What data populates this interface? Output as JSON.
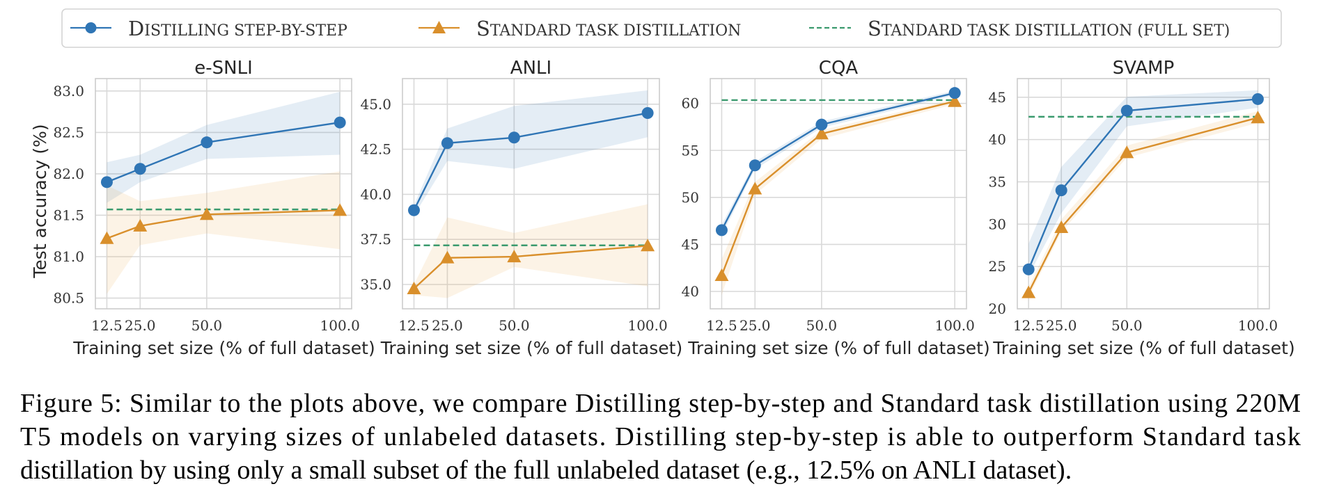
{
  "colors": {
    "distill": "#2f75b5",
    "standard": "#d98f2b",
    "full_set": "#3a9a6e",
    "distill_band": "#2f75b5",
    "standard_band": "#e8a94c"
  },
  "legend": {
    "items": [
      {
        "key": "distill",
        "label_first": "D",
        "label_rest": "ISTILLING STEP-BY-STEP",
        "marker": "circle",
        "style": "solid"
      },
      {
        "key": "standard",
        "label_first": "S",
        "label_rest": "TANDARD TASK DISTILLATION",
        "marker": "triangle",
        "style": "solid"
      },
      {
        "key": "full_set",
        "label_first": "S",
        "label_rest": "TANDARD TASK DISTILLATION (FULL SET)",
        "marker": "none",
        "style": "dashed"
      }
    ]
  },
  "caption": {
    "lines": [
      "Figure 5: Similar to the plots above, we compare Distilling step-by-step and Standard task distillation using 220M",
      "T5 models on varying sizes of unlabeled datasets.  Distilling step-by-step is able to outperform Standard task",
      "distillation by using only a small subset of the full unlabeled dataset (e.g., 12.5% on ANLI dataset)."
    ]
  },
  "chart_data": [
    {
      "type": "line",
      "title": "e-SNLI",
      "xlabel": "Training set size (% of full dataset)",
      "ylabel": "Test accuracy (%)",
      "x": [
        12.5,
        25.0,
        50.0,
        100.0
      ],
      "xticks": [
        "12.5",
        "25.0",
        "50.0",
        "100.0"
      ],
      "xlim": [
        8.2,
        104.4
      ],
      "ylim": [
        80.37,
        83.15
      ],
      "yticks": [
        80.5,
        81.0,
        81.5,
        82.0,
        82.5,
        83.0
      ],
      "ytick_labels": [
        "80.5",
        "81.0",
        "81.5",
        "82.0",
        "82.5",
        "83.0"
      ],
      "grid": true,
      "series": [
        {
          "name": "Distilling step-by-step",
          "key": "distill",
          "values": [
            81.9,
            82.06,
            82.38,
            82.62
          ],
          "band_upper": [
            82.14,
            82.23,
            82.59,
            82.99
          ],
          "band_lower": [
            81.65,
            81.9,
            82.18,
            82.23
          ]
        },
        {
          "name": "Standard task distillation",
          "key": "standard",
          "values": [
            81.22,
            81.37,
            81.51,
            81.56
          ],
          "band_upper": [
            81.86,
            81.67,
            81.77,
            82.03
          ],
          "band_lower": [
            80.55,
            81.14,
            81.28,
            81.09
          ]
        }
      ],
      "hline": {
        "name": "Standard task distillation (full set)",
        "key": "full_set",
        "value": 81.57
      }
    },
    {
      "type": "line",
      "title": "ANLI",
      "xlabel": "Training set size (% of full dataset)",
      "ylabel": "",
      "x": [
        12.5,
        25.0,
        50.0,
        100.0
      ],
      "xticks": [
        "12.5",
        "25.0",
        "50.0",
        "100.0"
      ],
      "xlim": [
        8.2,
        104.4
      ],
      "ylim": [
        33.65,
        46.42
      ],
      "yticks": [
        35.0,
        37.5,
        40.0,
        42.5,
        45.0
      ],
      "ytick_labels": [
        "35.0",
        "37.5",
        "40.0",
        "42.5",
        "45.0"
      ],
      "grid": true,
      "series": [
        {
          "name": "Distilling step-by-step",
          "key": "distill",
          "values": [
            39.12,
            42.84,
            43.15,
            44.51
          ],
          "band_upper": [
            39.4,
            43.65,
            44.9,
            45.77
          ],
          "band_lower": [
            38.82,
            41.85,
            41.42,
            43.17
          ]
        },
        {
          "name": "Standard task distillation",
          "key": "standard",
          "values": [
            34.77,
            36.48,
            36.54,
            37.15
          ],
          "band_upper": [
            35.0,
            38.72,
            37.86,
            39.45
          ],
          "band_lower": [
            34.4,
            34.25,
            35.97,
            34.9
          ]
        }
      ],
      "hline": {
        "name": "Standard task distillation (full set)",
        "key": "full_set",
        "value": 37.17
      }
    },
    {
      "type": "line",
      "title": "CQA",
      "xlabel": "Training set size (% of full dataset)",
      "ylabel": "",
      "x": [
        12.5,
        25.0,
        50.0,
        100.0
      ],
      "xticks": [
        "12.5",
        "25.0",
        "50.0",
        "100.0"
      ],
      "xlim": [
        8.2,
        104.4
      ],
      "ylim": [
        38.15,
        62.64
      ],
      "yticks": [
        40,
        45,
        50,
        55,
        60
      ],
      "ytick_labels": [
        "40",
        "45",
        "50",
        "55",
        "60"
      ],
      "grid": true,
      "series": [
        {
          "name": "Distilling step-by-step",
          "key": "distill",
          "values": [
            46.52,
            53.41,
            57.75,
            61.11
          ],
          "band_upper": [
            47.09,
            53.8,
            58.07,
            61.36
          ],
          "band_lower": [
            45.98,
            53.0,
            57.41,
            60.86
          ]
        },
        {
          "name": "Standard task distillation",
          "key": "standard",
          "values": [
            41.7,
            50.91,
            56.77,
            60.22
          ],
          "band_upper": [
            43.45,
            51.65,
            57.16,
            60.47
          ],
          "band_lower": [
            39.6,
            50.3,
            56.22,
            59.93
          ]
        }
      ],
      "hline": {
        "name": "Standard task distillation (full set)",
        "key": "full_set",
        "value": 60.35
      }
    },
    {
      "type": "line",
      "title": "SVAMP",
      "xlabel": "Training set size (% of full dataset)",
      "ylabel": "",
      "x": [
        12.5,
        25.0,
        50.0,
        100.0
      ],
      "xticks": [
        "12.5",
        "25.0",
        "50.0",
        "100.0"
      ],
      "xlim": [
        8.2,
        104.4
      ],
      "ylim": [
        20.0,
        47.2
      ],
      "yticks": [
        20,
        25,
        30,
        35,
        40,
        45
      ],
      "ytick_labels": [
        "20",
        "25",
        "30",
        "35",
        "40",
        "45"
      ],
      "grid": true,
      "series": [
        {
          "name": "Distilling step-by-step",
          "key": "distill",
          "values": [
            24.66,
            34.0,
            43.41,
            44.78
          ],
          "band_upper": [
            27.7,
            36.76,
            45.05,
            45.82
          ],
          "band_lower": [
            23.9,
            31.3,
            41.56,
            43.76
          ]
        },
        {
          "name": "Standard task distillation",
          "key": "standard",
          "values": [
            21.92,
            29.61,
            38.46,
            42.58
          ],
          "band_upper": [
            22.6,
            30.57,
            39.29,
            43.35
          ],
          "band_lower": [
            21.37,
            29.06,
            37.86,
            41.97
          ]
        }
      ],
      "hline": {
        "name": "Standard task distillation (full set)",
        "key": "full_set",
        "value": 42.69
      }
    }
  ]
}
